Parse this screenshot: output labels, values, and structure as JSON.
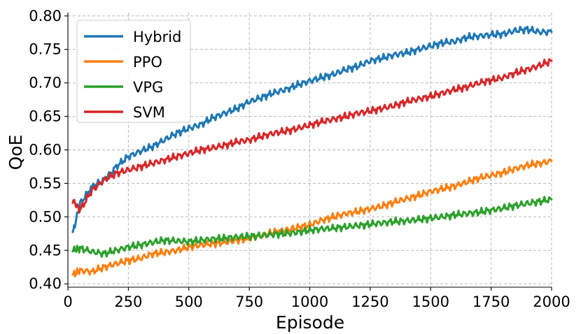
{
  "chart_data": {
    "type": "line",
    "xlabel": "Episode",
    "ylabel": "QoE",
    "xlim": [
      0,
      2000
    ],
    "ylim": [
      0.395,
      0.805
    ],
    "xticks": [
      0,
      250,
      500,
      750,
      1000,
      1250,
      1500,
      1750,
      2000
    ],
    "xtick_labels": [
      "0",
      "250",
      "500",
      "750",
      "1000",
      "1250",
      "1500",
      "1750",
      "2000"
    ],
    "yticks": [
      0.4,
      0.45,
      0.5,
      0.55,
      0.6,
      0.65,
      0.7,
      0.75,
      0.8
    ],
    "ytick_labels": [
      "0.40",
      "0.45",
      "0.50",
      "0.55",
      "0.60",
      "0.65",
      "0.70",
      "0.75",
      "0.80"
    ],
    "grid": true,
    "legend_position": "top-left",
    "series": [
      {
        "name": "Hybrid",
        "color": "#1f77b4",
        "x": [
          20,
          50,
          100,
          150,
          200,
          250,
          300,
          350,
          400,
          450,
          500,
          550,
          600,
          650,
          700,
          750,
          800,
          850,
          900,
          950,
          1000,
          1050,
          1100,
          1150,
          1200,
          1250,
          1300,
          1350,
          1400,
          1450,
          1500,
          1550,
          1600,
          1650,
          1700,
          1750,
          1800,
          1850,
          1900,
          1950,
          2000
        ],
        "values": [
          0.475,
          0.52,
          0.545,
          0.555,
          0.575,
          0.59,
          0.598,
          0.605,
          0.615,
          0.625,
          0.632,
          0.638,
          0.648,
          0.655,
          0.662,
          0.672,
          0.678,
          0.685,
          0.69,
          0.697,
          0.703,
          0.708,
          0.713,
          0.72,
          0.725,
          0.733,
          0.737,
          0.742,
          0.745,
          0.75,
          0.755,
          0.76,
          0.762,
          0.768,
          0.77,
          0.772,
          0.773,
          0.778,
          0.78,
          0.776,
          0.776
        ]
      },
      {
        "name": "PPO",
        "color": "#ff7f0e",
        "x": [
          20,
          50,
          100,
          150,
          200,
          250,
          300,
          350,
          400,
          450,
          500,
          550,
          600,
          650,
          700,
          750,
          800,
          850,
          900,
          950,
          1000,
          1050,
          1100,
          1150,
          1200,
          1250,
          1300,
          1350,
          1400,
          1450,
          1500,
          1550,
          1600,
          1650,
          1700,
          1750,
          1800,
          1850,
          1900,
          1950,
          2000
        ],
        "values": [
          0.413,
          0.42,
          0.418,
          0.425,
          0.43,
          0.435,
          0.438,
          0.445,
          0.447,
          0.45,
          0.455,
          0.458,
          0.46,
          0.462,
          0.465,
          0.468,
          0.472,
          0.477,
          0.48,
          0.484,
          0.488,
          0.495,
          0.5,
          0.505,
          0.508,
          0.512,
          0.516,
          0.522,
          0.527,
          0.532,
          0.538,
          0.542,
          0.546,
          0.552,
          0.558,
          0.562,
          0.566,
          0.572,
          0.577,
          0.58,
          0.583
        ]
      },
      {
        "name": "VPG",
        "color": "#2ca02c",
        "x": [
          20,
          50,
          100,
          150,
          200,
          250,
          300,
          350,
          400,
          450,
          500,
          550,
          600,
          650,
          700,
          750,
          800,
          850,
          900,
          950,
          1000,
          1050,
          1100,
          1150,
          1200,
          1250,
          1300,
          1350,
          1400,
          1450,
          1500,
          1550,
          1600,
          1650,
          1700,
          1750,
          1800,
          1850,
          1900,
          1950,
          2000
        ],
        "values": [
          0.45,
          0.453,
          0.448,
          0.445,
          0.45,
          0.455,
          0.458,
          0.462,
          0.465,
          0.464,
          0.463,
          0.465,
          0.467,
          0.468,
          0.47,
          0.471,
          0.472,
          0.474,
          0.475,
          0.477,
          0.48,
          0.482,
          0.483,
          0.485,
          0.487,
          0.489,
          0.491,
          0.493,
          0.494,
          0.496,
          0.498,
          0.5,
          0.503,
          0.505,
          0.507,
          0.51,
          0.513,
          0.517,
          0.52,
          0.523,
          0.526
        ]
      },
      {
        "name": "SVM",
        "color": "#d62728",
        "x": [
          20,
          50,
          100,
          150,
          200,
          250,
          300,
          350,
          400,
          450,
          500,
          550,
          600,
          650,
          700,
          750,
          800,
          850,
          900,
          950,
          1000,
          1050,
          1100,
          1150,
          1200,
          1250,
          1300,
          1350,
          1400,
          1450,
          1500,
          1550,
          1600,
          1650,
          1700,
          1750,
          1800,
          1850,
          1900,
          1950,
          2000
        ],
        "values": [
          0.525,
          0.51,
          0.54,
          0.555,
          0.565,
          0.57,
          0.575,
          0.58,
          0.585,
          0.59,
          0.595,
          0.6,
          0.603,
          0.607,
          0.612,
          0.615,
          0.62,
          0.625,
          0.628,
          0.632,
          0.637,
          0.642,
          0.646,
          0.65,
          0.655,
          0.658,
          0.662,
          0.666,
          0.672,
          0.676,
          0.68,
          0.685,
          0.69,
          0.694,
          0.7,
          0.704,
          0.708,
          0.715,
          0.72,
          0.726,
          0.733
        ]
      }
    ]
  }
}
